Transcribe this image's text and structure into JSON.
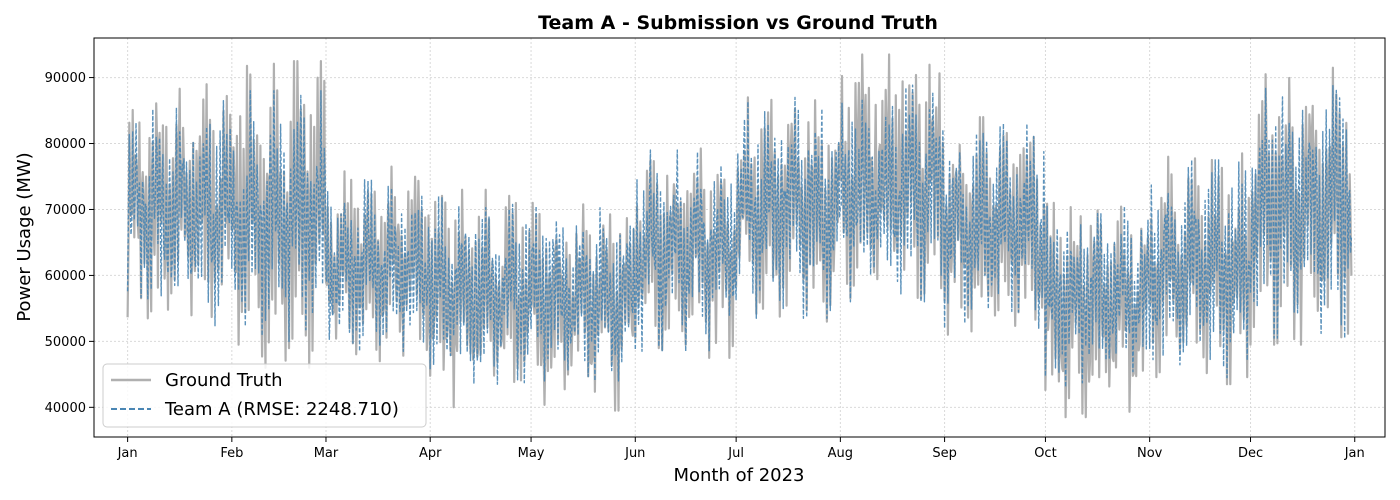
{
  "chart_data": {
    "type": "line",
    "title": "Team A - Submission vs Ground Truth",
    "xlabel": "Month of 2023",
    "ylabel": "Power Usage (MW)",
    "xlim": [
      "2022-12-22",
      "2024-01-10"
    ],
    "ylim": [
      35500,
      96000
    ],
    "grid": true,
    "legend_position": "lower-left",
    "x_ticks": [
      {
        "label": "Jan",
        "date": "2023-01-01"
      },
      {
        "label": "Feb",
        "date": "2023-02-01"
      },
      {
        "label": "Mar",
        "date": "2023-03-01"
      },
      {
        "label": "Apr",
        "date": "2023-04-01"
      },
      {
        "label": "May",
        "date": "2023-05-01"
      },
      {
        "label": "Jun",
        "date": "2023-06-01"
      },
      {
        "label": "Jul",
        "date": "2023-07-01"
      },
      {
        "label": "Aug",
        "date": "2023-08-01"
      },
      {
        "label": "Sep",
        "date": "2023-09-01"
      },
      {
        "label": "Oct",
        "date": "2023-10-01"
      },
      {
        "label": "Nov",
        "date": "2023-11-01"
      },
      {
        "label": "Dec",
        "date": "2023-12-01"
      },
      {
        "label": "Jan",
        "date": "2024-01-01"
      }
    ],
    "y_ticks": [
      {
        "label": "40000",
        "value": 40000
      },
      {
        "label": "50000",
        "value": 50000
      },
      {
        "label": "60000",
        "value": 60000
      },
      {
        "label": "70000",
        "value": 70000
      },
      {
        "label": "80000",
        "value": 80000
      },
      {
        "label": "90000",
        "value": 90000
      }
    ],
    "series": [
      {
        "name": "Ground Truth",
        "color": "#b0b0b0",
        "style": "solid",
        "monthly_range": [
          {
            "month": "2023-01",
            "min": 51500,
            "max": 89000
          },
          {
            "month": "2023-02",
            "min": 46000,
            "max": 92500
          },
          {
            "month": "2023-03",
            "min": 47000,
            "max": 76500
          },
          {
            "month": "2023-04",
            "min": 40000,
            "max": 73000
          },
          {
            "month": "2023-05",
            "min": 39500,
            "max": 71000
          },
          {
            "month": "2023-06",
            "min": 47500,
            "max": 79500
          },
          {
            "month": "2023-07",
            "min": 53000,
            "max": 87000
          },
          {
            "month": "2023-08",
            "min": 56500,
            "max": 93500
          },
          {
            "month": "2023-09",
            "min": 51000,
            "max": 84000
          },
          {
            "month": "2023-10",
            "min": 38500,
            "max": 71000
          },
          {
            "month": "2023-11",
            "min": 43500,
            "max": 78500
          },
          {
            "month": "2023-12",
            "min": 49500,
            "max": 91500
          }
        ]
      },
      {
        "name": "Team A (RMSE: 2248.710)",
        "color": "#4a86b4",
        "style": "dashed",
        "monthly_range": [
          {
            "month": "2023-01",
            "min": 52000,
            "max": 86500
          },
          {
            "month": "2023-02",
            "min": 50000,
            "max": 88000
          },
          {
            "month": "2023-03",
            "min": 48500,
            "max": 74500
          },
          {
            "month": "2023-04",
            "min": 43500,
            "max": 72500
          },
          {
            "month": "2023-05",
            "min": 44000,
            "max": 70500
          },
          {
            "month": "2023-06",
            "min": 48500,
            "max": 79000
          },
          {
            "month": "2023-07",
            "min": 53500,
            "max": 87000
          },
          {
            "month": "2023-08",
            "min": 56000,
            "max": 89000
          },
          {
            "month": "2023-09",
            "min": 52000,
            "max": 83000
          },
          {
            "month": "2023-10",
            "min": 43000,
            "max": 70500
          },
          {
            "month": "2023-11",
            "min": 44500,
            "max": 77500
          },
          {
            "month": "2023-12",
            "min": 50500,
            "max": 89500
          }
        ]
      }
    ]
  }
}
